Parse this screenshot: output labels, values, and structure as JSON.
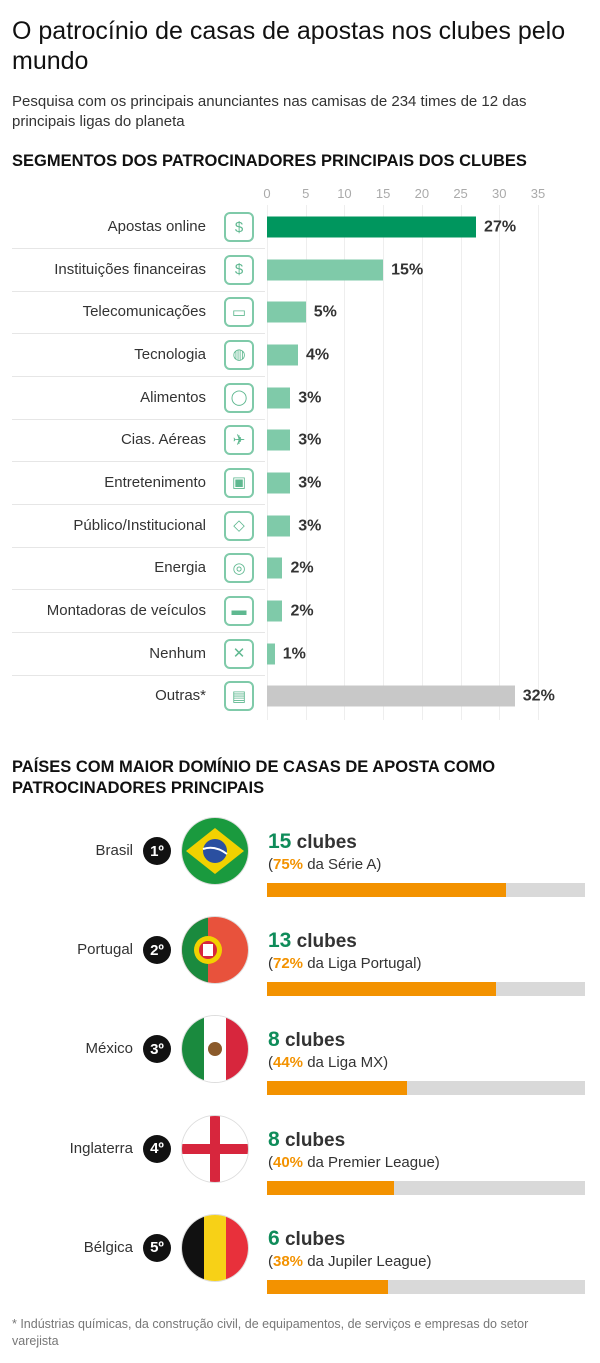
{
  "title": "O patrocínio de casas de apostas nos clubes pelo mundo",
  "subtitle": "Pesquisa com os principais anunciantes nas camisas de 234 times de 12 das principais ligas do planeta",
  "chart_data": [
    {
      "type": "bar",
      "orientation": "horizontal",
      "title": "SEGMENTOS DOS PATROCINADORES PRINCIPAIS DOS CLUBES",
      "xlim": [
        0,
        35
      ],
      "ticks": [
        0,
        5,
        10,
        15,
        20,
        25,
        30,
        35
      ],
      "grid": true,
      "categories": [
        "Apostas online",
        "Instituições financeiras",
        "Telecomunicações",
        "Tecnologia",
        "Alimentos",
        "Cias. Aéreas",
        "Entretenimento",
        "Público/Institucional",
        "Energia",
        "Montadoras de veículos",
        "Nenhum",
        "Outras*"
      ],
      "values": [
        27,
        15,
        5,
        4,
        3,
        3,
        3,
        3,
        2,
        2,
        1,
        32
      ],
      "labels": [
        "27%",
        "15%",
        "5%",
        "4%",
        "3%",
        "3%",
        "3%",
        "3%",
        "2%",
        "2%",
        "1%",
        "32%"
      ],
      "icons": [
        "phone-money-icon",
        "coins-icon",
        "monitor-icon",
        "globe-icon",
        "plate-icon",
        "plane-icon",
        "tv-remote-icon",
        "brazil-map-icon",
        "lightbulb-icon",
        "car-icon",
        "x-circle-icon",
        "documents-icon"
      ],
      "icon_glyphs": [
        "$",
        "$",
        "▭",
        "◍",
        "◯",
        "✈",
        "▣",
        "◇",
        "◎",
        "▬",
        "✕",
        "▤"
      ],
      "colors": {
        "highlight": "#00965e",
        "default": "#7fcaa9",
        "other": "#c8c8c8"
      }
    },
    {
      "type": "bar",
      "title": "PAÍSES COM MAIOR DOMÍNIO DE CASAS DE APOSTA COMO PATROCINADORES PRINCIPAIS",
      "xlim": [
        0,
        100
      ],
      "rows": [
        {
          "country": "Brasil",
          "rank": "1º",
          "clubs": "15",
          "clubs_label": "clubes",
          "percent": 75,
          "percent_label": "75%",
          "league": "da Série A",
          "flag": "brazil"
        },
        {
          "country": "Portugal",
          "rank": "2º",
          "clubs": "13",
          "clubs_label": "clubes",
          "percent": 72,
          "percent_label": "72%",
          "league": "da Liga Portugal",
          "flag": "portugal"
        },
        {
          "country": "México",
          "rank": "3º",
          "clubs": "8",
          "clubs_label": "clubes",
          "percent": 44,
          "percent_label": "44%",
          "league": "da Liga MX",
          "flag": "mexico"
        },
        {
          "country": "Inglaterra",
          "rank": "4º",
          "clubs": "8",
          "clubs_label": "clubes",
          "percent": 40,
          "percent_label": "40%",
          "league": "da Premier League",
          "flag": "england"
        },
        {
          "country": "Bélgica",
          "rank": "5º",
          "clubs": "6",
          "clubs_label": "clubes",
          "percent": 38,
          "percent_label": "38%",
          "league": "da Jupiler League",
          "flag": "belgium"
        }
      ],
      "colors": {
        "fill": "#f39200",
        "track": "#d9d9d9",
        "count": "#0f8c5a"
      }
    }
  ],
  "footnote": "* Indústrias químicas, da construção civil, de equipamentos, de serviços e empresas do setor varejista"
}
